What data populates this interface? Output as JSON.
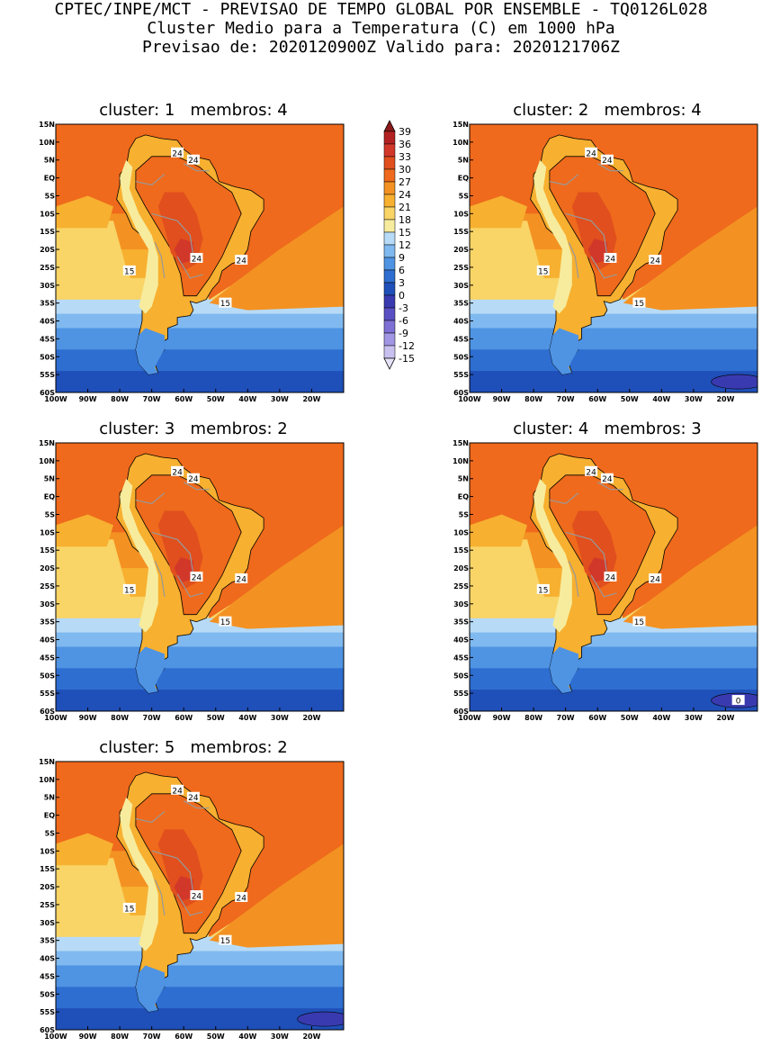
{
  "header": {
    "line1": "CPTEC/INPE/MCT - PREVISAO DE TEMPO GLOBAL POR ENSEMBLE - TQ0126L028",
    "line2": "Cluster Medio para a Temperatura (C) em 1000 hPa",
    "line3": "Previsao de: 2020120900Z   Valido para: 2020121706Z"
  },
  "axes": {
    "lat_labels": [
      "15N",
      "10N",
      "5N",
      "EQ",
      "5S",
      "10S",
      "15S",
      "20S",
      "25S",
      "30S",
      "35S",
      "40S",
      "45S",
      "50S",
      "55S",
      "60S"
    ],
    "lon_labels": [
      "100W",
      "90W",
      "80W",
      "70W",
      "60W",
      "50W",
      "40W",
      "30W",
      "20W"
    ]
  },
  "colorbar": {
    "labels": [
      "39",
      "36",
      "33",
      "30",
      "27",
      "24",
      "21",
      "18",
      "15",
      "12",
      "9",
      "6",
      "3",
      "0",
      "-3",
      "-6",
      "-9",
      "-12",
      "-15"
    ],
    "colors": [
      "#8b1a1a",
      "#b22222",
      "#d2382a",
      "#e04f1d",
      "#ef6a1c",
      "#f39222",
      "#f7b030",
      "#f9d466",
      "#f7ec9d",
      "#b7dbf7",
      "#7fb9f0",
      "#4f93e3",
      "#2e6ed0",
      "#1f4fb8",
      "#3a3ab0",
      "#5a50c4",
      "#7d6fd4",
      "#a196e3",
      "#c8c1ef",
      "#e6e2f8"
    ]
  },
  "panels": [
    {
      "title": "cluster: 1   membros: 4",
      "labels": [
        "24",
        "24",
        "24",
        "24",
        "15",
        "15"
      ]
    },
    {
      "title": "cluster: 2   membros: 4",
      "labels": [
        "24",
        "24",
        "24",
        "24",
        "15",
        "15"
      ]
    },
    {
      "title": "cluster: 3   membros: 2",
      "labels": [
        "24",
        "24",
        "24",
        "24",
        "15",
        "15"
      ]
    },
    {
      "title": "cluster: 4   membros: 3",
      "labels": [
        "24",
        "24",
        "24",
        "24",
        "15",
        "15",
        "0"
      ]
    },
    {
      "title": "cluster: 5   membros: 2",
      "labels": [
        "24",
        "24",
        "24",
        "24",
        "15",
        "15"
      ]
    }
  ]
}
